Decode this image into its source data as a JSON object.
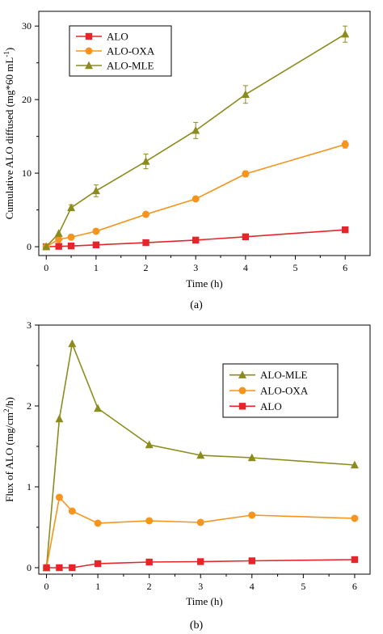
{
  "chart_data": [
    {
      "type": "line",
      "caption": "(a)",
      "xlabel": "Time (h)",
      "ylabel": "Cumulative ALO diffused (mg*60 mL",
      "ylabel_sup": "-1",
      "ylabel_close": ")",
      "xlim": [
        -0.15,
        6.5
      ],
      "ylim": [
        -1.2,
        32
      ],
      "xticks": [
        0,
        1,
        2,
        3,
        4,
        5,
        6
      ],
      "yticks": [
        0,
        10,
        20,
        30
      ],
      "legend_position": "top-left",
      "series": [
        {
          "name": "ALO",
          "color": "#e8242b",
          "marker": "square",
          "x": [
            0,
            0.25,
            0.5,
            1,
            2,
            3,
            4,
            6
          ],
          "y": [
            0,
            0.05,
            0.1,
            0.25,
            0.55,
            0.9,
            1.35,
            2.3
          ],
          "err": [
            0,
            0,
            0,
            0,
            0,
            0,
            0,
            0.1
          ]
        },
        {
          "name": "ALO-OXA",
          "color": "#f7941d",
          "marker": "circle",
          "x": [
            0,
            0.25,
            0.5,
            1,
            2,
            3,
            4,
            6
          ],
          "y": [
            0,
            1.0,
            1.3,
            2.1,
            4.4,
            6.5,
            9.9,
            13.9
          ],
          "err": [
            0,
            0,
            0,
            0,
            0,
            0,
            0.4,
            0.5
          ]
        },
        {
          "name": "ALO-MLE",
          "color": "#8c8c1e",
          "marker": "triangle",
          "x": [
            0,
            0.25,
            0.5,
            1,
            2,
            3,
            4,
            6
          ],
          "y": [
            0,
            1.8,
            5.3,
            7.6,
            11.6,
            15.8,
            20.7,
            28.9
          ],
          "err": [
            0,
            0,
            0.4,
            0.8,
            1.0,
            1.1,
            1.2,
            1.1
          ]
        }
      ]
    },
    {
      "type": "line",
      "caption": "(b)",
      "xlabel": "Time (h)",
      "ylabel": "Flux of ALO (mg/cm",
      "ylabel_sup": "2",
      "ylabel_close": "/h)",
      "xlim": [
        -0.15,
        6.3
      ],
      "ylim": [
        -0.08,
        3.0
      ],
      "xticks": [
        0,
        1,
        2,
        3,
        4,
        5,
        6
      ],
      "yticks": [
        0,
        1,
        2,
        3
      ],
      "legend_position": "top-right",
      "series": [
        {
          "name": "ALO-MLE",
          "color": "#8c8c1e",
          "marker": "triangle",
          "x": [
            0,
            0.25,
            0.5,
            1,
            2,
            3,
            4,
            6
          ],
          "y": [
            0,
            1.84,
            2.77,
            1.97,
            1.52,
            1.39,
            1.36,
            1.27
          ],
          "err": []
        },
        {
          "name": "ALO-OXA",
          "color": "#f7941d",
          "marker": "circle",
          "x": [
            0,
            0.25,
            0.5,
            1,
            2,
            3,
            4,
            6
          ],
          "y": [
            0,
            0.87,
            0.7,
            0.55,
            0.58,
            0.56,
            0.65,
            0.61
          ],
          "err": []
        },
        {
          "name": "ALO",
          "color": "#e8242b",
          "marker": "square",
          "x": [
            0,
            0.25,
            0.5,
            1,
            2,
            3,
            4,
            6
          ],
          "y": [
            0,
            0,
            0,
            0.05,
            0.07,
            0.075,
            0.085,
            0.1
          ],
          "err": []
        }
      ]
    }
  ]
}
